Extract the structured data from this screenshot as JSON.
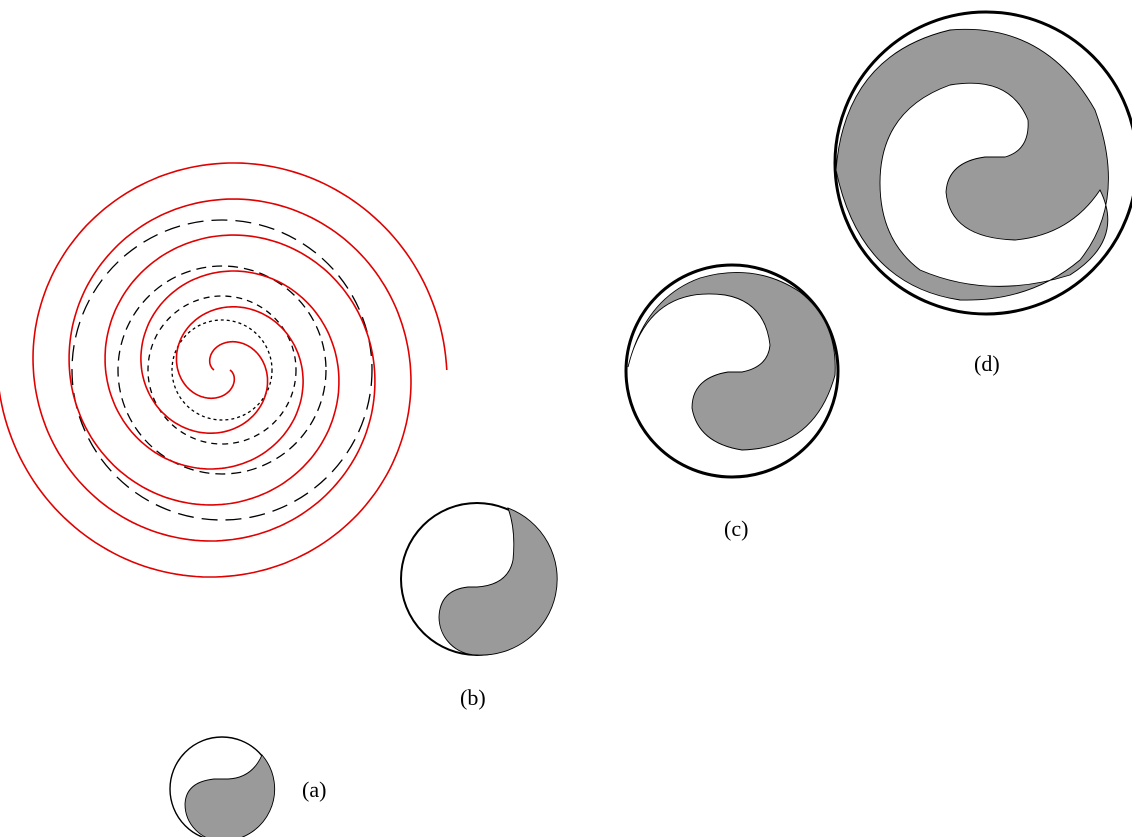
{
  "labels": {
    "a": "(a)",
    "b": "(b)",
    "c": "(c)",
    "d": "(d)"
  },
  "colors": {
    "spiral": "#e00000",
    "guide": "#000000",
    "fill": "#9a9a9a",
    "background": "#ffffff"
  }
}
